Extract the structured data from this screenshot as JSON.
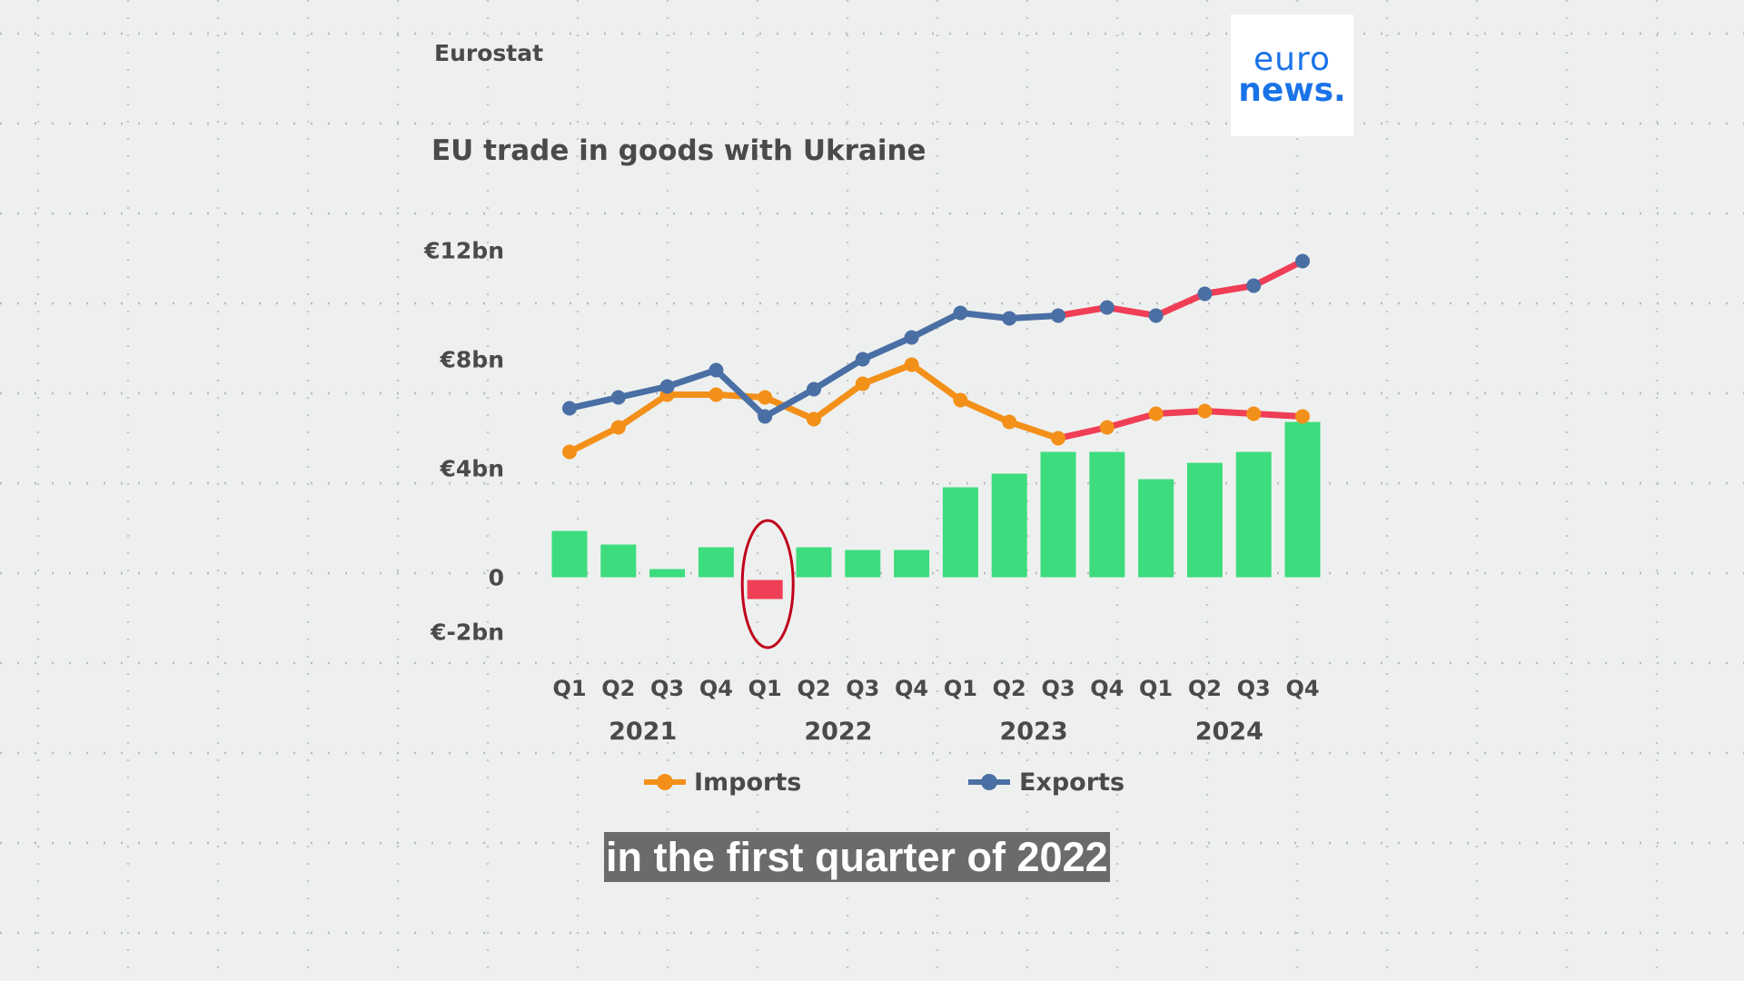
{
  "source": "Eurostat",
  "logo": {
    "line1": "euro",
    "line2": "news."
  },
  "subtitle": "in the first quarter of 2022",
  "chart_data": {
    "type": "bar+line",
    "title": "EU trade in goods with Ukraine",
    "ylim": [
      -2,
      12
    ],
    "y_ticks": [
      {
        "value": 12,
        "label": "€12bn"
      },
      {
        "value": 8,
        "label": "€8bn"
      },
      {
        "value": 4,
        "label": "€4bn"
      },
      {
        "value": 0,
        "label": "0"
      },
      {
        "value": -2,
        "label": "€-2bn"
      }
    ],
    "categories": [
      "Q1",
      "Q2",
      "Q3",
      "Q4",
      "Q1",
      "Q2",
      "Q3",
      "Q4",
      "Q1",
      "Q2",
      "Q3",
      "Q4",
      "Q1",
      "Q2",
      "Q3",
      "Q4"
    ],
    "years": [
      "2021",
      "2022",
      "2023",
      "2024"
    ],
    "series": [
      {
        "name": "Imports",
        "type": "line",
        "color": "#f39019",
        "values": [
          4.6,
          5.5,
          6.7,
          6.7,
          6.6,
          5.8,
          7.1,
          7.8,
          6.5,
          5.7,
          5.1,
          5.5,
          6.0,
          6.1,
          6.0,
          5.9
        ]
      },
      {
        "name": "Exports",
        "type": "line",
        "color": "#4a6fa5",
        "values": [
          6.2,
          6.6,
          7.0,
          7.6,
          5.9,
          6.9,
          8.0,
          8.8,
          9.7,
          9.5,
          9.6,
          9.9,
          9.6,
          10.4,
          10.7,
          11.6
        ]
      },
      {
        "type": "bar",
        "values": [
          1.7,
          1.2,
          0.3,
          1.1,
          -0.8,
          1.1,
          1.0,
          1.0,
          3.3,
          3.8,
          4.6,
          4.6,
          3.6,
          4.2,
          4.6,
          5.7
        ]
      }
    ],
    "colors": {
      "positive_bar": "#3ddc7e",
      "negative_bar": "#ef3e55",
      "highlight_line": "#ef3e55",
      "circle": "#c0001a"
    },
    "highlight_from_category_index": 10,
    "circled_category_index": 4,
    "legend": "bottom",
    "grid": true
  }
}
